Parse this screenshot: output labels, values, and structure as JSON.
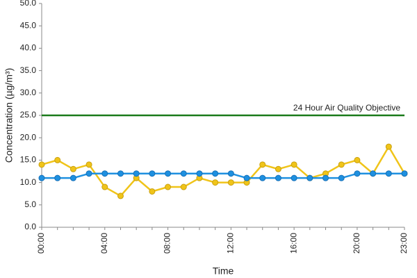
{
  "chart_data": {
    "type": "line",
    "x_label": "Time",
    "y_label": "Concentration (µg/m³)",
    "categories": [
      "00:00",
      null,
      null,
      null,
      "04:00",
      null,
      null,
      null,
      "08:00",
      null,
      null,
      null,
      "12:00",
      null,
      null,
      null,
      "16:00",
      null,
      null,
      null,
      "20:00",
      null,
      null,
      "23:00"
    ],
    "series": [
      {
        "color": "#f0c419",
        "values": [
          14,
          15,
          13,
          14,
          9,
          7,
          11,
          8,
          9,
          9,
          11,
          10,
          10,
          10,
          14,
          13,
          14,
          11,
          12,
          14,
          15,
          12,
          18,
          12
        ]
      },
      {
        "color": "#1e90e0",
        "values": [
          11,
          11,
          11,
          12,
          12,
          12,
          12,
          12,
          12,
          12,
          12,
          12,
          12,
          11,
          11,
          11,
          11,
          11,
          11,
          11,
          12,
          12,
          12,
          12
        ]
      }
    ],
    "reference_lines": [
      {
        "value": 25,
        "label": "24 Hour Air Quality Objective",
        "color": "#1a7a1a"
      }
    ],
    "ylim": [
      0,
      50
    ],
    "yticks": [
      {
        "value": 0,
        "label": "0.0"
      },
      {
        "value": 5,
        "label": "5.0"
      },
      {
        "value": 10,
        "label": "10.0"
      },
      {
        "value": 15,
        "label": "15.0"
      },
      {
        "value": 20,
        "label": "20.0"
      },
      {
        "value": 25,
        "label": "25.0"
      },
      {
        "value": 30,
        "label": "30.0"
      },
      {
        "value": 35,
        "label": "35.0"
      },
      {
        "value": 40,
        "label": "40.0"
      },
      {
        "value": 45,
        "label": "45.0"
      },
      {
        "value": 50,
        "label": "50.0"
      }
    ],
    "grid": false
  }
}
